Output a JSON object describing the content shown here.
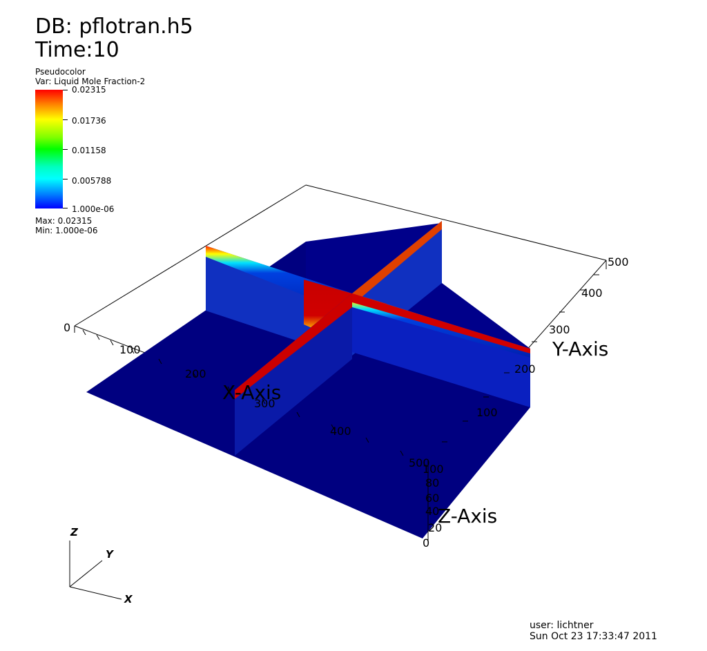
{
  "header": {
    "db_label": "DB: pflotran.h5",
    "time_label": "Time:10"
  },
  "legend": {
    "plot_type": "Pseudocolor",
    "variable": "Var: Liquid Mole Fraction-2",
    "ticks": [
      "0.02315",
      "0.01736",
      "0.01158",
      "0.005788",
      "1.000e-06"
    ],
    "max": "Max:  0.02315",
    "min": "Min:  1.000e-06",
    "colormap": [
      "#ff0000",
      "#ffff00",
      "#00ff00",
      "#00ffff",
      "#0000ff"
    ]
  },
  "axes": {
    "x_title": "X-Axis",
    "y_title": "Y-Axis",
    "z_title": "Z-Axis",
    "x_ticks": [
      "0",
      "100",
      "200",
      "300",
      "400",
      "500"
    ],
    "y_ticks": [
      "100",
      "200",
      "300",
      "400",
      "500"
    ],
    "z_ticks": [
      "0",
      "20",
      "40",
      "60",
      "80",
      "100"
    ]
  },
  "triad": {
    "x": "X",
    "y": "Y",
    "z": "Z"
  },
  "footer": {
    "user": "user: lichtner",
    "date": "Sun Oct 23 17:33:47 2011"
  },
  "colors": {
    "background": "#0000cc",
    "high": "#cc0000"
  }
}
